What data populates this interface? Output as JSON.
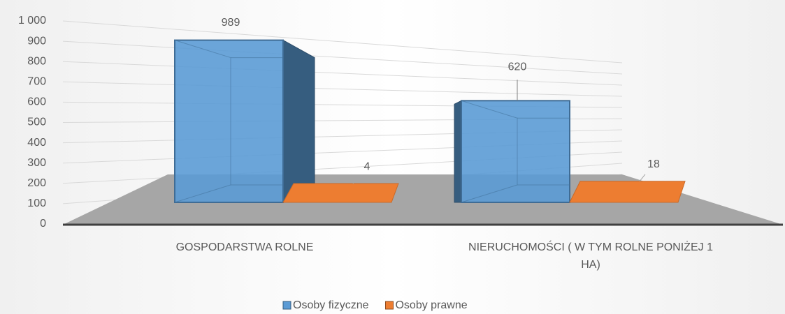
{
  "chart_data": {
    "type": "bar3d",
    "categories": [
      "GOSPODARSTWA ROLNE",
      "NIERUCHOMOŚCI ( W TYM ROLNE PONIŻEJ 1 HA)"
    ],
    "series": [
      {
        "name": "Osoby fizyczne",
        "color": "#5b9bd5",
        "values": [
          989,
          620
        ]
      },
      {
        "name": "Osoby prawne",
        "color": "#ed7d31",
        "values": [
          4,
          18
        ]
      }
    ],
    "ylim": [
      0,
      1000
    ],
    "yticks": [
      0,
      100,
      200,
      300,
      400,
      500,
      600,
      700,
      800,
      900,
      {
        "value": 1000,
        "label": "1 000"
      }
    ],
    "grid": true,
    "legend": "bottom"
  }
}
